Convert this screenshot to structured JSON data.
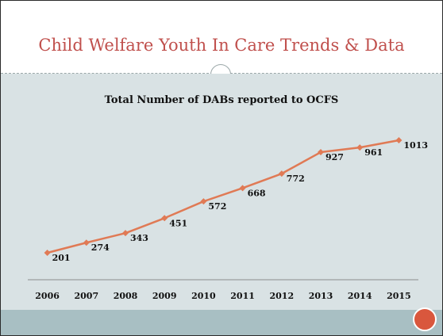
{
  "slide": {
    "title": "Child Welfare Youth In Care Trends & Data"
  },
  "colors": {
    "title_text": "#c0504d",
    "series_line": "#e07a55",
    "content_background": "#d9e2e4",
    "footer_bar": "#a8bfc3",
    "corner_circle": "#d9573d"
  },
  "chart_data": {
    "type": "line",
    "title": "Total Number of DABs reported to OCFS",
    "xlabel": "",
    "ylabel": "",
    "categories": [
      "2006",
      "2007",
      "2008",
      "2009",
      "2010",
      "2011",
      "2012",
      "2013",
      "2014",
      "2015"
    ],
    "series": [
      {
        "values": [
          201,
          274,
          343,
          451,
          572,
          668,
          772,
          927,
          961,
          1013
        ]
      }
    ],
    "ylim": [
      0,
      1100
    ],
    "grid": false,
    "legend": "none",
    "data_labels": true
  }
}
